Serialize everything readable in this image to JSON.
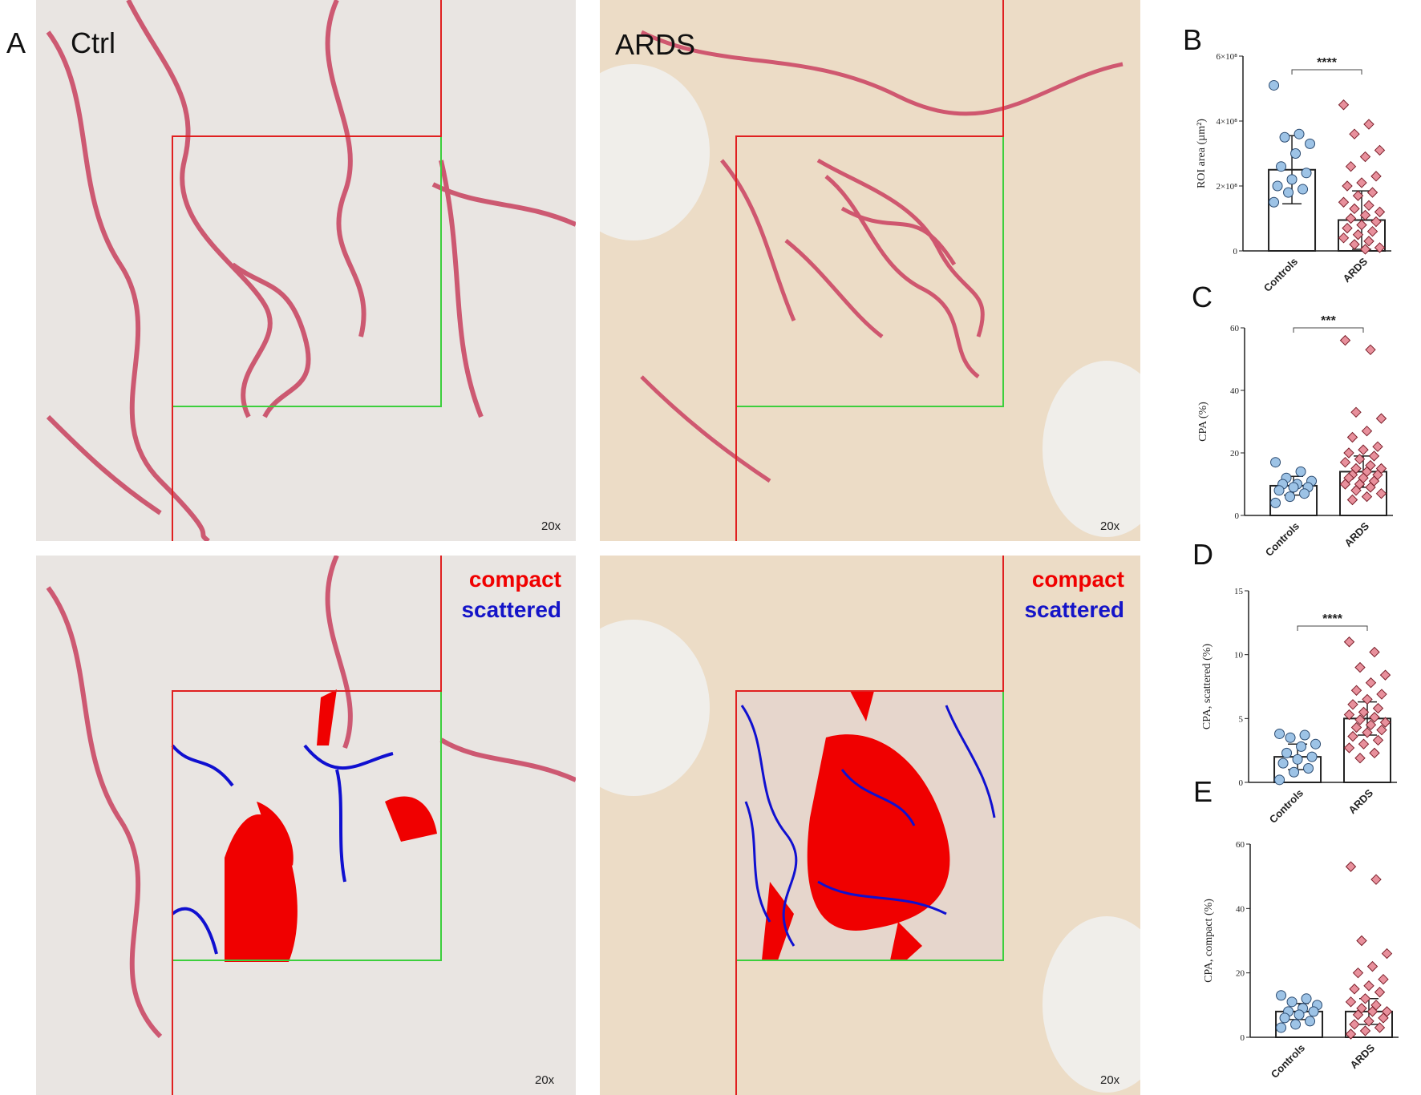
{
  "panels": {
    "label": "A",
    "ctrl": "Ctrl",
    "ards": "ARDS",
    "magnification": "20x",
    "compact": "compact",
    "scattered": "scattered"
  },
  "chart_data": [
    {
      "type": "bar",
      "panel": "B",
      "y_label": "ROI area (µm²)",
      "categories": [
        "Controls",
        "ARDS"
      ],
      "values": [
        250000000.0,
        95000000.0
      ],
      "errors": [
        105000000.0,
        90000000.0
      ],
      "significance": "****",
      "colors": [
        "#9dc3e6",
        "#e8909c"
      ],
      "points": [
        [
          510000000.0,
          360000000.0,
          350000000.0,
          330000000.0,
          300000000.0,
          260000000.0,
          240000000.0,
          220000000.0,
          200000000.0,
          190000000.0,
          180000000.0,
          150000000.0
        ],
        [
          450000000.0,
          390000000.0,
          360000000.0,
          310000000.0,
          290000000.0,
          260000000.0,
          230000000.0,
          210000000.0,
          200000000.0,
          180000000.0,
          170000000.0,
          150000000.0,
          140000000.0,
          130000000.0,
          120000000.0,
          110000000.0,
          100000000.0,
          90000000.0,
          80000000.0,
          70000000.0,
          60000000.0,
          50000000.0,
          40000000.0,
          30000000.0,
          20000000.0,
          10000000.0,
          5000000.0
        ]
      ],
      "ylim": [
        0,
        600000000.0
      ],
      "yticks": [
        0,
        {
          "value": 200000000.0,
          "label": "2×10⁸"
        },
        {
          "value": 400000000.0,
          "label": "4×10⁸"
        },
        {
          "value": 600000000.0,
          "label": "6×10⁸"
        }
      ]
    },
    {
      "type": "bar",
      "panel": "C",
      "y_label": "CPA (%)",
      "categories": [
        "Controls",
        "ARDS"
      ],
      "values": [
        9.5,
        14
      ],
      "errors": [
        3,
        5
      ],
      "significance": "***",
      "colors": [
        "#9dc3e6",
        "#e8909c"
      ],
      "points": [
        [
          17,
          14,
          12,
          11,
          10,
          10,
          9,
          9,
          8,
          7,
          6,
          4
        ],
        [
          56,
          53,
          33,
          31,
          27,
          25,
          22,
          21,
          20,
          19,
          18,
          17,
          16,
          15,
          15,
          14,
          13,
          13,
          12,
          12,
          11,
          10,
          10,
          9,
          8,
          7,
          6,
          5
        ]
      ],
      "ylim": [
        0,
        60
      ],
      "yticks": [
        0,
        20,
        40,
        60
      ]
    },
    {
      "type": "bar",
      "panel": "D",
      "y_label": "CPA, scattered (%)",
      "categories": [
        "Controls",
        "ARDS"
      ],
      "values": [
        2.0,
        5.0
      ],
      "errors": [
        1.0,
        1.3
      ],
      "significance": "****",
      "colors": [
        "#9dc3e6",
        "#e8909c"
      ],
      "points": [
        [
          3.8,
          3.7,
          3.5,
          3.0,
          2.8,
          2.3,
          2.0,
          1.8,
          1.5,
          1.1,
          0.8,
          0.2
        ],
        [
          11,
          10.2,
          9,
          8.4,
          7.8,
          7.2,
          6.9,
          6.5,
          6.1,
          5.8,
          5.5,
          5.3,
          5.1,
          4.9,
          4.7,
          4.5,
          4.3,
          4.1,
          3.9,
          3.6,
          3.3,
          3.0,
          2.7,
          2.3,
          1.9
        ]
      ],
      "ylim": [
        0,
        15
      ],
      "yticks": [
        0,
        5,
        10,
        15
      ]
    },
    {
      "type": "bar",
      "panel": "E",
      "y_label": "CPA, compact (%)",
      "categories": [
        "Controls",
        "ARDS"
      ],
      "values": [
        8,
        8
      ],
      "errors": [
        2.5,
        4
      ],
      "colors": [
        "#9dc3e6",
        "#e8909c"
      ],
      "points": [
        [
          13,
          12,
          11,
          10,
          9,
          8,
          8,
          7,
          6,
          5,
          4,
          3
        ],
        [
          53,
          49,
          30,
          26,
          22,
          20,
          18,
          16,
          15,
          14,
          12,
          11,
          10,
          9,
          8,
          8,
          7,
          6,
          5,
          4,
          3,
          2,
          1
        ]
      ],
      "ylim": [
        0,
        60
      ],
      "yticks": [
        0,
        20,
        40,
        60
      ]
    }
  ]
}
